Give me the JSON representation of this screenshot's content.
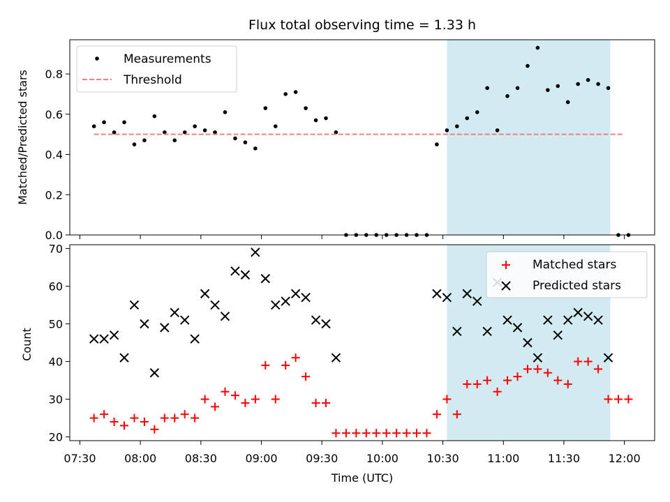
{
  "colors": {
    "measurement": "#000000",
    "threshold": "#f08080",
    "matched": "#ff0000",
    "predicted": "#000000",
    "highlight": "#add8e6"
  },
  "chart_data": [
    {
      "type": "scatter",
      "title": "Flux total observing time = 1.33 h",
      "xlabel": "",
      "ylabel": "Matched/Predicted stars",
      "xlim": [
        "07:25",
        "12:15"
      ],
      "ylim": [
        0,
        0.97
      ],
      "yticks": [
        0.0,
        0.2,
        0.4,
        0.6,
        0.8
      ],
      "ytick_labels": [
        "0.0",
        "0.2",
        "0.4",
        "0.6",
        "0.8"
      ],
      "highlight_span": [
        "10:32",
        "11:53"
      ],
      "legend": {
        "placement": "upper-left",
        "entries": [
          "Measurements",
          "Threshold"
        ]
      },
      "series": [
        {
          "name": "Measurements",
          "marker": "dot",
          "points": [
            [
              "07:37",
              0.54
            ],
            [
              "07:42",
              0.56
            ],
            [
              "07:47",
              0.51
            ],
            [
              "07:52",
              0.56
            ],
            [
              "07:57",
              0.45
            ],
            [
              "08:02",
              0.47
            ],
            [
              "08:07",
              0.59
            ],
            [
              "08:12",
              0.51
            ],
            [
              "08:17",
              0.47
            ],
            [
              "08:22",
              0.51
            ],
            [
              "08:27",
              0.54
            ],
            [
              "08:32",
              0.52
            ],
            [
              "08:37",
              0.51
            ],
            [
              "08:42",
              0.61
            ],
            [
              "08:47",
              0.48
            ],
            [
              "08:52",
              0.46
            ],
            [
              "08:57",
              0.43
            ],
            [
              "09:02",
              0.63
            ],
            [
              "09:07",
              0.54
            ],
            [
              "09:12",
              0.7
            ],
            [
              "09:17",
              0.71
            ],
            [
              "09:22",
              0.63
            ],
            [
              "09:27",
              0.57
            ],
            [
              "09:32",
              0.58
            ],
            [
              "09:37",
              0.51
            ],
            [
              "09:42",
              0.0
            ],
            [
              "09:47",
              0.0
            ],
            [
              "09:52",
              0.0
            ],
            [
              "09:57",
              0.0
            ],
            [
              "10:02",
              0.0
            ],
            [
              "10:07",
              0.0
            ],
            [
              "10:12",
              0.0
            ],
            [
              "10:17",
              0.0
            ],
            [
              "10:22",
              0.0
            ],
            [
              "10:27",
              0.45
            ],
            [
              "10:32",
              0.52
            ],
            [
              "10:37",
              0.54
            ],
            [
              "10:42",
              0.58
            ],
            [
              "10:47",
              0.61
            ],
            [
              "10:52",
              0.73
            ],
            [
              "10:57",
              0.52
            ],
            [
              "11:02",
              0.69
            ],
            [
              "11:07",
              0.73
            ],
            [
              "11:12",
              0.84
            ],
            [
              "11:17",
              0.93
            ],
            [
              "11:22",
              0.72
            ],
            [
              "11:27",
              0.74
            ],
            [
              "11:32",
              0.66
            ],
            [
              "11:37",
              0.75
            ],
            [
              "11:42",
              0.77
            ],
            [
              "11:47",
              0.75
            ],
            [
              "11:52",
              0.73
            ],
            [
              "11:57",
              0.0
            ],
            [
              "12:02",
              0.0
            ]
          ]
        },
        {
          "name": "Threshold",
          "style": "dashed",
          "points": [
            [
              "07:37",
              0.5
            ],
            [
              "12:00",
              0.5
            ]
          ]
        }
      ]
    },
    {
      "type": "scatter",
      "title": "",
      "xlabel": "Time (UTC)",
      "ylabel": "Count",
      "xlim": [
        "07:25",
        "12:15"
      ],
      "ylim": [
        19,
        71
      ],
      "yticks": [
        20,
        30,
        40,
        50,
        60,
        70
      ],
      "ytick_labels": [
        "20",
        "30",
        "40",
        "50",
        "60",
        "70"
      ],
      "xticks": [
        "07:30",
        "08:00",
        "08:30",
        "09:00",
        "09:30",
        "10:00",
        "10:30",
        "11:00",
        "11:30",
        "12:00"
      ],
      "highlight_span": [
        "10:32",
        "11:53"
      ],
      "legend": {
        "placement": "upper-right",
        "entries": [
          "Matched stars",
          "Predicted stars"
        ]
      },
      "series": [
        {
          "name": "Matched stars",
          "marker": "plus",
          "points": [
            [
              "07:37",
              25
            ],
            [
              "07:42",
              26
            ],
            [
              "07:47",
              24
            ],
            [
              "07:52",
              23
            ],
            [
              "07:57",
              25
            ],
            [
              "08:02",
              24
            ],
            [
              "08:07",
              22
            ],
            [
              "08:12",
              25
            ],
            [
              "08:17",
              25
            ],
            [
              "08:22",
              26
            ],
            [
              "08:27",
              25
            ],
            [
              "08:32",
              30
            ],
            [
              "08:37",
              28
            ],
            [
              "08:42",
              32
            ],
            [
              "08:47",
              31
            ],
            [
              "08:52",
              29
            ],
            [
              "08:57",
              30
            ],
            [
              "09:02",
              39
            ],
            [
              "09:07",
              30
            ],
            [
              "09:12",
              39
            ],
            [
              "09:17",
              41
            ],
            [
              "09:22",
              36
            ],
            [
              "09:27",
              29
            ],
            [
              "09:32",
              29
            ],
            [
              "09:37",
              21
            ],
            [
              "09:42",
              21
            ],
            [
              "09:47",
              21
            ],
            [
              "09:52",
              21
            ],
            [
              "09:57",
              21
            ],
            [
              "10:02",
              21
            ],
            [
              "10:07",
              21
            ],
            [
              "10:12",
              21
            ],
            [
              "10:17",
              21
            ],
            [
              "10:22",
              21
            ],
            [
              "10:27",
              26
            ],
            [
              "10:32",
              30
            ],
            [
              "10:37",
              26
            ],
            [
              "10:42",
              34
            ],
            [
              "10:47",
              34
            ],
            [
              "10:52",
              35
            ],
            [
              "10:57",
              32
            ],
            [
              "11:02",
              35
            ],
            [
              "11:07",
              36
            ],
            [
              "11:12",
              38
            ],
            [
              "11:17",
              38
            ],
            [
              "11:22",
              37
            ],
            [
              "11:27",
              35
            ],
            [
              "11:32",
              34
            ],
            [
              "11:37",
              40
            ],
            [
              "11:42",
              40
            ],
            [
              "11:47",
              38
            ],
            [
              "11:52",
              30
            ],
            [
              "11:57",
              30
            ],
            [
              "12:02",
              30
            ]
          ]
        },
        {
          "name": "Predicted stars",
          "marker": "x",
          "points": [
            [
              "07:37",
              46
            ],
            [
              "07:42",
              46
            ],
            [
              "07:47",
              47
            ],
            [
              "07:52",
              41
            ],
            [
              "07:57",
              55
            ],
            [
              "08:02",
              50
            ],
            [
              "08:07",
              37
            ],
            [
              "08:12",
              49
            ],
            [
              "08:17",
              53
            ],
            [
              "08:22",
              51
            ],
            [
              "08:27",
              46
            ],
            [
              "08:32",
              58
            ],
            [
              "08:37",
              55
            ],
            [
              "08:42",
              52
            ],
            [
              "08:47",
              64
            ],
            [
              "08:52",
              63
            ],
            [
              "08:57",
              69
            ],
            [
              "09:02",
              62
            ],
            [
              "09:07",
              55
            ],
            [
              "09:12",
              56
            ],
            [
              "09:17",
              58
            ],
            [
              "09:22",
              57
            ],
            [
              "09:27",
              51
            ],
            [
              "09:32",
              50
            ],
            [
              "09:37",
              41
            ],
            [
              "10:27",
              58
            ],
            [
              "10:32",
              57
            ],
            [
              "10:37",
              48
            ],
            [
              "10:42",
              58
            ],
            [
              "10:47",
              56
            ],
            [
              "10:52",
              48
            ],
            [
              "10:57",
              61
            ],
            [
              "11:02",
              51
            ],
            [
              "11:07",
              49
            ],
            [
              "11:12",
              45
            ],
            [
              "11:17",
              41
            ],
            [
              "11:22",
              51
            ],
            [
              "11:27",
              47
            ],
            [
              "11:32",
              51
            ],
            [
              "11:37",
              53
            ],
            [
              "11:42",
              52
            ],
            [
              "11:47",
              51
            ],
            [
              "11:52",
              41
            ]
          ]
        }
      ]
    }
  ]
}
